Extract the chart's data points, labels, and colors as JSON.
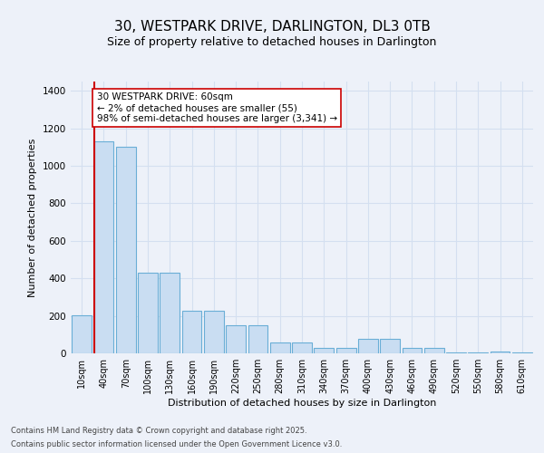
{
  "title": "30, WESTPARK DRIVE, DARLINGTON, DL3 0TB",
  "subtitle": "Size of property relative to detached houses in Darlington",
  "xlabel": "Distribution of detached houses by size in Darlington",
  "ylabel": "Number of detached properties",
  "bar_labels": [
    "10sqm",
    "40sqm",
    "70sqm",
    "100sqm",
    "130sqm",
    "160sqm",
    "190sqm",
    "220sqm",
    "250sqm",
    "280sqm",
    "310sqm",
    "340sqm",
    "370sqm",
    "400sqm",
    "430sqm",
    "460sqm",
    "490sqm",
    "520sqm",
    "550sqm",
    "580sqm",
    "610sqm"
  ],
  "bar_values": [
    205,
    1130,
    1100,
    430,
    430,
    225,
    225,
    150,
    150,
    60,
    60,
    28,
    28,
    75,
    75,
    28,
    28,
    5,
    5,
    12,
    5
  ],
  "bar_color": "#c9ddf2",
  "bar_edge_color": "#6aaed6",
  "vline_color": "#cc0000",
  "vline_x": 0.58,
  "annotation_text": "30 WESTPARK DRIVE: 60sqm\n← 2% of detached houses are smaller (55)\n98% of semi-detached houses are larger (3,341) →",
  "ann_box_facecolor": "#ffffff",
  "ann_box_edgecolor": "#cc0000",
  "ylim": [
    0,
    1450
  ],
  "yticks": [
    0,
    200,
    400,
    600,
    800,
    1000,
    1200,
    1400
  ],
  "grid_color": "#d4dff0",
  "bg_color": "#edf1f9",
  "footer_line1": "Contains HM Land Registry data © Crown copyright and database right 2025.",
  "footer_line2": "Contains public sector information licensed under the Open Government Licence v3.0."
}
